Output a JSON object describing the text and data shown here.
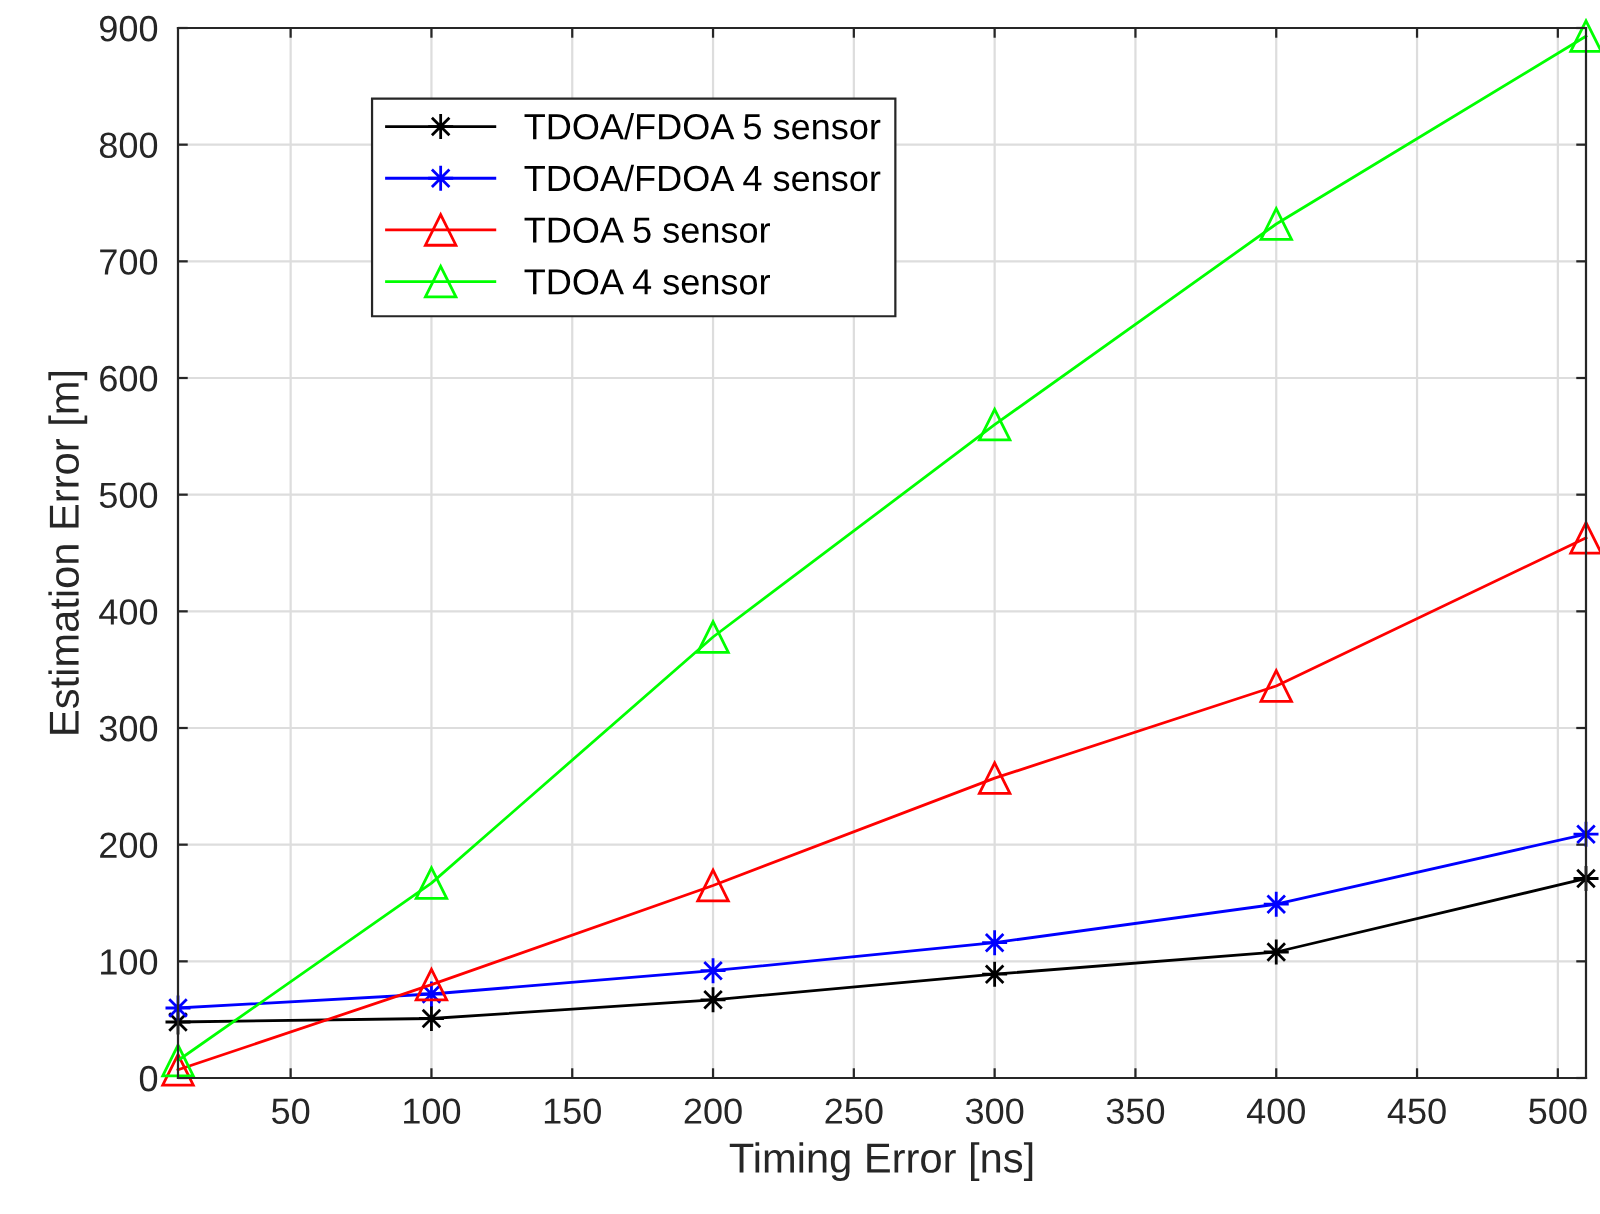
{
  "chart_data": {
    "type": "line",
    "xlabel": "Timing Error [ns]",
    "ylabel": "Estimation Error [m]",
    "x": [
      10,
      100,
      200,
      300,
      400,
      510
    ],
    "series": [
      {
        "name": "TDOA/FDOA 5 sensor",
        "color": "#000000",
        "marker": "cross",
        "values": [
          48,
          51,
          67,
          89,
          108,
          171
        ]
      },
      {
        "name": "TDOA/FDOA 4 sensor",
        "color": "#0000ff",
        "marker": "cross",
        "values": [
          60,
          72,
          92,
          116,
          149,
          209
        ]
      },
      {
        "name": "TDOA 5 sensor",
        "color": "#ff0000",
        "marker": "triangle",
        "values": [
          7,
          80,
          165,
          257,
          336,
          463
        ]
      },
      {
        "name": "TDOA 4 sensor",
        "color": "#00ff00",
        "marker": "triangle",
        "values": [
          15,
          167,
          378,
          560,
          732,
          893
        ]
      }
    ],
    "xlim": [
      10,
      510
    ],
    "ylim": [
      0,
      900
    ],
    "xticks": [
      50,
      100,
      150,
      200,
      250,
      300,
      350,
      400,
      450,
      500
    ],
    "yticks": [
      0,
      100,
      200,
      300,
      400,
      500,
      600,
      700,
      800,
      900
    ],
    "grid": true,
    "legend": "top left",
    "line_style": "solid"
  }
}
